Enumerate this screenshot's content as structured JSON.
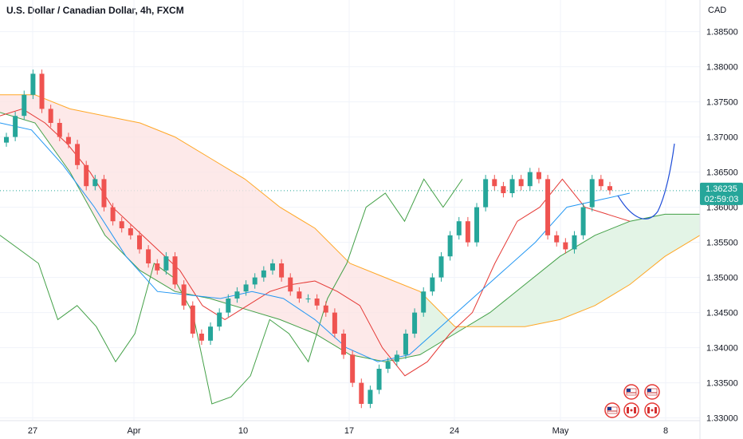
{
  "title": "U.S. Dollar / Canadian Dollar, 4h, FXCM",
  "chart_data": {
    "type": "candlestick",
    "title": "U.S. Dollar / Canadian Dollar, 4h, FXCM",
    "ylabel": "CAD",
    "ylim": [
      1.327,
      1.3895
    ],
    "y_ticks": [
      "1.38500",
      "1.38000",
      "1.37500",
      "1.37000",
      "1.36500",
      "1.36000",
      "1.35500",
      "1.35000",
      "1.34500",
      "1.34000",
      "1.33500",
      "1.33000"
    ],
    "x_ticks": [
      "27",
      "Apr",
      "10",
      "17",
      "24",
      "May",
      "8"
    ],
    "last_price": "1.36235",
    "countdown": "02:59:03",
    "indicator": "Ichimoku Cloud",
    "grid": true,
    "candles_close": [
      1.37,
      1.373,
      1.376,
      1.379,
      1.374,
      1.372,
      1.37,
      1.369,
      1.366,
      1.363,
      1.364,
      1.36,
      1.358,
      1.357,
      1.356,
      1.354,
      1.352,
      1.351,
      1.353,
      1.349,
      1.346,
      1.342,
      1.341,
      1.343,
      1.345,
      1.347,
      1.348,
      1.349,
      1.35,
      1.351,
      1.352,
      1.35,
      1.348,
      1.347,
      1.347,
      1.346,
      1.345,
      1.342,
      1.339,
      1.335,
      1.332,
      1.334,
      1.337,
      1.338,
      1.339,
      1.342,
      1.345,
      1.348,
      1.35,
      1.353,
      1.356,
      1.358,
      1.355,
      1.36,
      1.364,
      1.363,
      1.362,
      1.364,
      1.363,
      1.365,
      1.364,
      1.356,
      1.355,
      1.354,
      1.356,
      1.36,
      1.364,
      1.363,
      1.3624
    ],
    "ichimoku": {
      "conversion": [
        1.373,
        1.374,
        1.372,
        1.369,
        1.365,
        1.36,
        1.357,
        1.354,
        1.351,
        1.346,
        1.344,
        1.346,
        1.348,
        1.349,
        1.3495,
        1.348,
        1.346,
        1.34,
        1.336,
        1.338,
        1.342,
        1.345,
        1.352,
        1.358,
        1.36,
        1.364,
        1.36,
        1.359,
        1.358
      ],
      "base": [
        1.372,
        1.371,
        1.366,
        1.36,
        1.353,
        1.348,
        1.3475,
        1.347,
        1.348,
        1.347,
        1.344,
        1.34,
        1.338,
        1.339,
        1.343,
        1.347,
        1.351,
        1.355,
        1.36,
        1.361,
        1.362
      ],
      "lagging": [
        1.356,
        1.354,
        1.352,
        1.344,
        1.346,
        1.343,
        1.338,
        1.342,
        1.352,
        1.35,
        1.345,
        1.332,
        1.333,
        1.336,
        1.344,
        1.342,
        1.338,
        1.347,
        1.352,
        1.36,
        1.362,
        1.358,
        1.364,
        1.36,
        1.364
      ]
    }
  },
  "event_icons": [
    "us-flag-icon",
    "us-flag-icon",
    "us-flag-icon",
    "ca-flag-icon",
    "ca-flag-icon",
    "ca-flag-icon"
  ]
}
